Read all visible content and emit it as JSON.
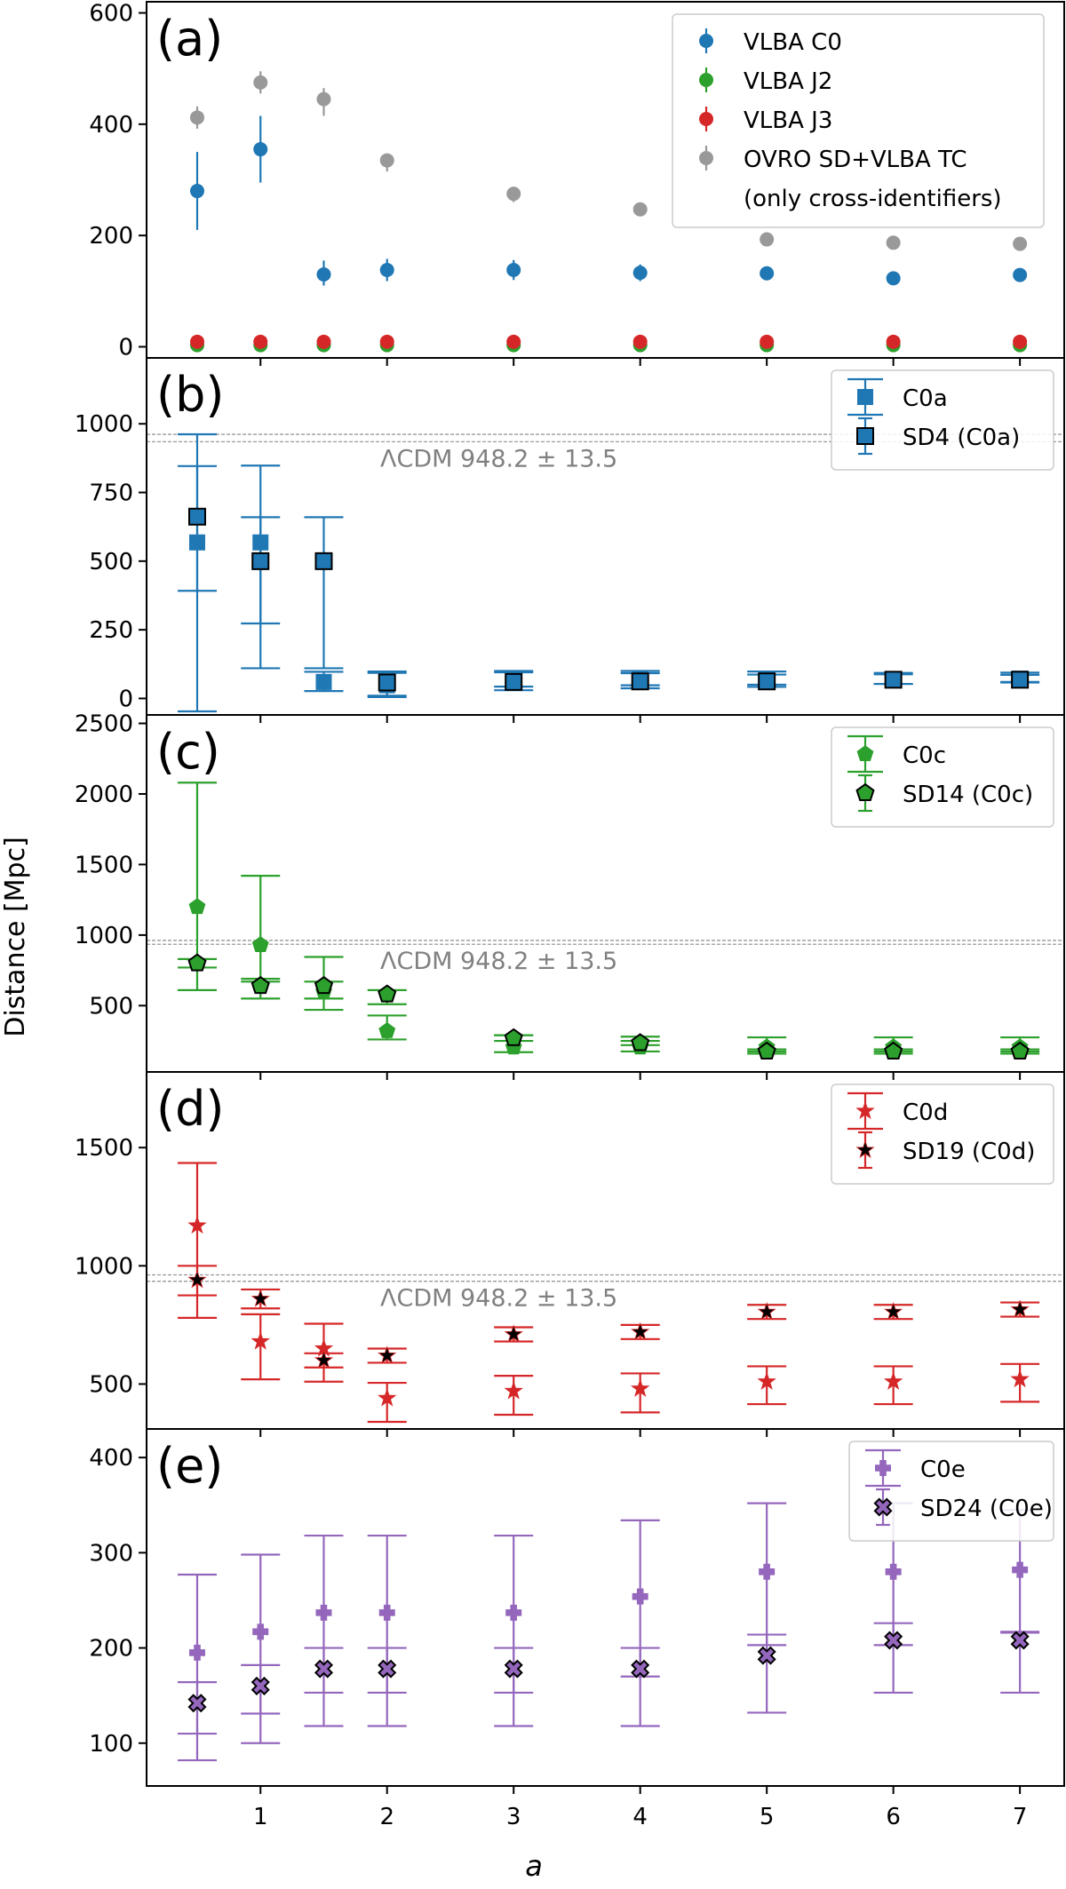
{
  "figure": {
    "ylabel": "Distance [Mpc]",
    "xlabel": "a"
  },
  "colors": {
    "blue": "#1f77b4",
    "green": "#2ca02c",
    "red": "#d62728",
    "gray": "#999999",
    "purple": "#9467bd",
    "lcdm_text": "#808080"
  },
  "chart_data": [
    {
      "type": "scatter",
      "panel": "(a)",
      "x": [
        0.5,
        1,
        1.5,
        2,
        3,
        4,
        5,
        6,
        7
      ],
      "ylim": [
        -20,
        620
      ],
      "yticks": [
        0,
        200,
        400,
        600
      ],
      "legend": {
        "placement": "top-right"
      },
      "series": [
        {
          "name": "VLBA C0",
          "color": "blue",
          "marker": "circle",
          "values": [
            280,
            355,
            130,
            138,
            138,
            133,
            132,
            123,
            129
          ],
          "err_lo": [
            70,
            60,
            20,
            20,
            18,
            15,
            12,
            10,
            10
          ],
          "err_hi": [
            70,
            60,
            25,
            20,
            18,
            15,
            12,
            10,
            10
          ]
        },
        {
          "name": "VLBA J2",
          "color": "green",
          "marker": "circle",
          "values": [
            3,
            3,
            3,
            3,
            3,
            3,
            3,
            3,
            3
          ],
          "err_lo": [
            2,
            2,
            2,
            2,
            2,
            2,
            2,
            2,
            2
          ],
          "err_hi": [
            2,
            2,
            2,
            2,
            2,
            2,
            2,
            2,
            2
          ]
        },
        {
          "name": "VLBA J3",
          "color": "red",
          "marker": "circle",
          "values": [
            9,
            9,
            9,
            9,
            9,
            9,
            9,
            9,
            9
          ],
          "err_lo": [
            3,
            3,
            3,
            3,
            3,
            3,
            3,
            3,
            3
          ],
          "err_hi": [
            3,
            3,
            3,
            3,
            3,
            3,
            3,
            3,
            3
          ]
        },
        {
          "name": "OVRO SD+VLBA TC\n(only cross-identifiers)",
          "color": "gray",
          "marker": "circle",
          "values": [
            412,
            475,
            445,
            335,
            275,
            247,
            193,
            187,
            185
          ],
          "err_lo": [
            20,
            20,
            30,
            20,
            15,
            10,
            10,
            8,
            8
          ],
          "err_hi": [
            20,
            20,
            20,
            10,
            10,
            10,
            8,
            8,
            8
          ]
        }
      ]
    },
    {
      "type": "scatter",
      "panel": "(b)",
      "x": [
        0.5,
        1,
        1.5,
        2,
        3,
        4,
        5,
        6,
        7
      ],
      "ylim": [
        -60,
        1240
      ],
      "yticks": [
        0,
        250,
        500,
        750,
        1000
      ],
      "legend": {
        "placement": "top-right"
      },
      "lcdm": {
        "label": "ΛCDM 948.2 ± 13.5",
        "value": 948.2,
        "err": 13.5
      },
      "series": [
        {
          "name": "C0a",
          "color": "blue",
          "marker": "square",
          "edge": false,
          "values": [
            568,
            568,
            60,
            48,
            65,
            68,
            68,
            68,
            72
          ],
          "err_lo": [
            615,
            295,
            33,
            38,
            22,
            20,
            18,
            15,
            12
          ],
          "err_hi": [
            278,
            280,
            37,
            50,
            35,
            32,
            30,
            25,
            22
          ]
        },
        {
          "name": "SD4 (C0a)",
          "color": "blue",
          "marker": "square",
          "edge": true,
          "values": [
            662,
            500,
            500,
            58,
            60,
            62,
            62,
            68,
            68
          ],
          "err_lo": [
            270,
            390,
            390,
            53,
            30,
            25,
            20,
            15,
            10
          ],
          "err_hi": [
            300,
            160,
            160,
            35,
            35,
            30,
            25,
            20,
            18
          ]
        }
      ]
    },
    {
      "type": "scatter",
      "panel": "(c)",
      "x": [
        0.5,
        1,
        1.5,
        2,
        3,
        4,
        5,
        6,
        7
      ],
      "ylim": [
        30,
        2560
      ],
      "yticks": [
        500,
        1000,
        1500,
        2000,
        2500
      ],
      "legend": {
        "placement": "top-right"
      },
      "lcdm": {
        "label": "ΛCDM 948.2 ± 13.5",
        "value": 948.2,
        "err": 13.5
      },
      "series": [
        {
          "name": "C0c",
          "color": "green",
          "marker": "pentagon",
          "edge": false,
          "values": [
            1200,
            930,
            600,
            320,
            205,
            205,
            205,
            205,
            205
          ],
          "err_lo": [
            430,
            240,
            130,
            60,
            35,
            30,
            30,
            30,
            30
          ],
          "err_hi": [
            880,
            490,
            245,
            110,
            85,
            75,
            70,
            70,
            70
          ]
        },
        {
          "name": "SD14 (C0c)",
          "color": "green",
          "marker": "pentagon",
          "edge": true,
          "values": [
            800,
            640,
            640,
            580,
            270,
            235,
            175,
            175,
            175
          ],
          "err_lo": [
            190,
            90,
            90,
            70,
            20,
            15,
            15,
            15,
            15
          ],
          "err_hi": [
            30,
            30,
            30,
            30,
            20,
            15,
            15,
            15,
            15
          ]
        }
      ]
    },
    {
      "type": "scatter",
      "panel": "(d)",
      "x": [
        0.5,
        1,
        1.5,
        2,
        3,
        4,
        5,
        6,
        7
      ],
      "ylim": [
        310,
        1820
      ],
      "yticks": [
        500,
        1000,
        1500
      ],
      "legend": {
        "placement": "top-right"
      },
      "lcdm": {
        "label": "ΛCDM 948.2 ± 13.5",
        "value": 948.2,
        "err": 13.5
      },
      "series": [
        {
          "name": "C0d",
          "color": "red",
          "marker": "star",
          "edge": false,
          "values": [
            1170,
            680,
            650,
            440,
            470,
            480,
            510,
            510,
            520
          ],
          "err_lo": [
            390,
            160,
            140,
            100,
            100,
            100,
            95,
            95,
            95
          ],
          "err_hi": [
            265,
            115,
            105,
            65,
            65,
            65,
            65,
            65,
            65
          ]
        },
        {
          "name": "SD19 (C0d)",
          "color": "red",
          "marker": "star",
          "edge": true,
          "values": [
            940,
            860,
            600,
            620,
            710,
            720,
            805,
            805,
            815
          ],
          "err_lo": [
            65,
            40,
            30,
            30,
            30,
            30,
            30,
            30,
            30
          ],
          "err_hi": [
            60,
            40,
            30,
            30,
            30,
            30,
            30,
            30,
            30
          ]
        }
      ]
    },
    {
      "type": "scatter",
      "panel": "(e)",
      "x": [
        0.5,
        1,
        1.5,
        2,
        3,
        4,
        5,
        6,
        7
      ],
      "ylim": [
        55,
        430
      ],
      "yticks": [
        100,
        200,
        300,
        400
      ],
      "legend": {
        "placement": "top-right"
      },
      "series": [
        {
          "name": "C0e",
          "color": "purple",
          "marker": "plus",
          "edge": false,
          "values": [
            195,
            217,
            237,
            237,
            237,
            254,
            280,
            280,
            282
          ],
          "err_lo": [
            85,
            86,
            84,
            84,
            84,
            84,
            77,
            77,
            65
          ],
          "err_hi": [
            82,
            81,
            81,
            81,
            81,
            80,
            72,
            72,
            63
          ]
        },
        {
          "name": "SD24 (C0e)",
          "color": "purple",
          "marker": "xcross",
          "edge": true,
          "values": [
            142,
            160,
            178,
            178,
            178,
            178,
            192,
            208,
            208
          ],
          "err_lo": [
            60,
            60,
            60,
            60,
            60,
            60,
            60,
            55,
            55
          ],
          "err_hi": [
            22,
            22,
            22,
            22,
            22,
            22,
            22,
            18,
            8
          ]
        }
      ]
    }
  ],
  "xaxis": {
    "xlim": [
      0.1,
      7.35
    ],
    "ticks": [
      1,
      2,
      3,
      4,
      5,
      6,
      7
    ]
  }
}
